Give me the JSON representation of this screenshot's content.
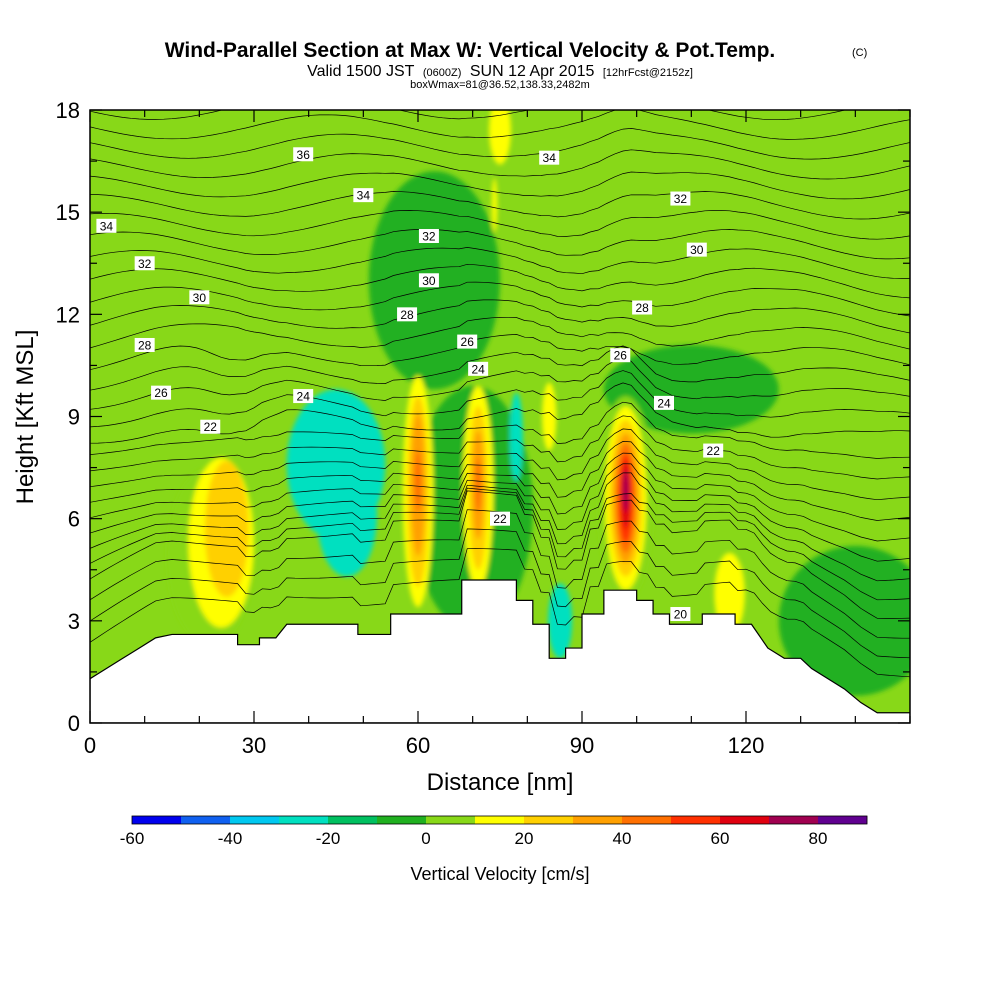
{
  "chart_data": {
    "type": "heatmap",
    "title": "Wind-Parallel Section at Max W: Vertical Velocity & Pot.Temp.",
    "copyright": "(C)",
    "subtitle_parts": [
      "Valid 1500 JST",
      "(0600Z)",
      "SUN 12 Apr 2015",
      "[12hrFcst@2152z]"
    ],
    "subtitle2": "boxWmax=81@36.52,138.33,2482m",
    "xlabel": "Distance [nm]",
    "ylabel": "Height [Kft MSL]",
    "xlim": [
      0,
      150
    ],
    "ylim": [
      0,
      18
    ],
    "x_ticks": [
      0,
      30,
      60,
      90,
      120
    ],
    "y_ticks": [
      0,
      3,
      6,
      9,
      12,
      15,
      18
    ],
    "colorbar": {
      "label": "Vertical Velocity [cm/s]",
      "levels": [
        -60,
        -50,
        -40,
        -30,
        -20,
        -10,
        0,
        10,
        20,
        30,
        40,
        50,
        60,
        70,
        80,
        90
      ],
      "tick_labels": [
        -60,
        -40,
        -20,
        0,
        20,
        40,
        60,
        80
      ],
      "colors": [
        "#0000ee",
        "#1060f0",
        "#00c8f0",
        "#00e0c0",
        "#00c060",
        "#20b020",
        "#88d818",
        "#ffff00",
        "#ffd000",
        "#ffa000",
        "#ff7000",
        "#ff3000",
        "#e00010",
        "#a00050",
        "#600090"
      ]
    },
    "terrain_kft": [
      [
        0,
        1.3
      ],
      [
        3,
        1.6
      ],
      [
        6,
        1.9
      ],
      [
        9,
        2.2
      ],
      [
        12,
        2.5
      ],
      [
        15,
        2.6
      ],
      [
        27,
        2.6
      ],
      [
        27,
        2.3
      ],
      [
        31,
        2.3
      ],
      [
        31,
        2.5
      ],
      [
        34,
        2.5
      ],
      [
        36,
        2.9
      ],
      [
        49,
        2.9
      ],
      [
        49,
        2.6
      ],
      [
        55,
        2.6
      ],
      [
        55,
        3.2
      ],
      [
        68,
        3.2
      ],
      [
        68,
        4.2
      ],
      [
        78,
        4.2
      ],
      [
        78,
        3.6
      ],
      [
        81,
        3.6
      ],
      [
        81,
        2.9
      ],
      [
        84,
        2.9
      ],
      [
        84,
        1.9
      ],
      [
        87,
        1.9
      ],
      [
        87,
        2.2
      ],
      [
        90,
        2.2
      ],
      [
        90,
        3.2
      ],
      [
        94,
        3.2
      ],
      [
        94,
        3.9
      ],
      [
        100,
        3.9
      ],
      [
        100,
        3.6
      ],
      [
        103,
        3.6
      ],
      [
        103,
        3.2
      ],
      [
        106,
        3.2
      ],
      [
        106,
        2.9
      ],
      [
        112,
        2.9
      ],
      [
        112,
        3.2
      ],
      [
        118,
        3.2
      ],
      [
        118,
        2.9
      ],
      [
        121,
        2.9
      ],
      [
        124,
        2.2
      ],
      [
        127,
        1.9
      ],
      [
        130,
        1.9
      ],
      [
        132,
        1.6
      ],
      [
        135,
        1.3
      ],
      [
        138,
        1.0
      ],
      [
        141,
        0.6
      ],
      [
        144,
        0.3
      ],
      [
        150,
        0.3
      ]
    ],
    "vertical_velocity_features": [
      {
        "x": 45,
        "y": 7.6,
        "rx": 9,
        "ry": 2.2,
        "value": -25
      },
      {
        "x": 70,
        "y": 6.3,
        "rx": 11,
        "ry": 3.6,
        "value": -5
      },
      {
        "x": 140,
        "y": 3.0,
        "rx": 14,
        "ry": 2.2,
        "value": -5
      },
      {
        "x": 110,
        "y": 9.8,
        "rx": 16,
        "ry": 1.3,
        "value": -5
      },
      {
        "x": 47,
        "y": 6.1,
        "rx": 5.5,
        "ry": 1.8,
        "value": -25
      },
      {
        "x": 63,
        "y": 13.0,
        "rx": 12,
        "ry": 3.2,
        "value": -5
      },
      {
        "x": 78,
        "y": 8.4,
        "rx": 1.2,
        "ry": 1.3,
        "value": -25
      },
      {
        "x": 86,
        "y": 3.0,
        "rx": 2.2,
        "ry": 1.1,
        "value": -25
      },
      {
        "x": 22,
        "y": 4.9,
        "rx": 8,
        "ry": 2.6,
        "value": 5
      },
      {
        "x": 24,
        "y": 5.3,
        "rx": 6,
        "ry": 2.5,
        "value": 15
      },
      {
        "x": 25,
        "y": 5.7,
        "rx": 4,
        "ry": 2.0,
        "value": 25
      },
      {
        "x": 60,
        "y": 6.8,
        "rx": 2.8,
        "ry": 3.4,
        "value": 15
      },
      {
        "x": 60,
        "y": 6.8,
        "rx": 2.0,
        "ry": 2.8,
        "value": 25
      },
      {
        "x": 60,
        "y": 7.0,
        "rx": 1.3,
        "ry": 2.1,
        "value": 35
      },
      {
        "x": 60,
        "y": 7.1,
        "rx": 0.6,
        "ry": 0.9,
        "value": 45
      },
      {
        "x": 71,
        "y": 6.9,
        "rx": 2.8,
        "ry": 3.0,
        "value": 15
      },
      {
        "x": 71,
        "y": 6.9,
        "rx": 1.8,
        "ry": 2.4,
        "value": 25
      },
      {
        "x": 71,
        "y": 7.0,
        "rx": 1.1,
        "ry": 1.6,
        "value": 35
      },
      {
        "x": 71,
        "y": 7.0,
        "rx": 0.5,
        "ry": 0.8,
        "value": 45
      },
      {
        "x": 98,
        "y": 6.6,
        "rx": 5.2,
        "ry": 3.0,
        "value": 5
      },
      {
        "x": 98,
        "y": 6.6,
        "rx": 3.8,
        "ry": 2.7,
        "value": 15
      },
      {
        "x": 98,
        "y": 6.6,
        "rx": 3.0,
        "ry": 2.3,
        "value": 25
      },
      {
        "x": 98,
        "y": 6.6,
        "rx": 2.3,
        "ry": 1.9,
        "value": 35
      },
      {
        "x": 98,
        "y": 6.6,
        "rx": 1.8,
        "ry": 1.6,
        "value": 45
      },
      {
        "x": 98,
        "y": 6.6,
        "rx": 1.3,
        "ry": 1.3,
        "value": 55
      },
      {
        "x": 98,
        "y": 6.7,
        "rx": 0.9,
        "ry": 1.0,
        "value": 65
      },
      {
        "x": 98,
        "y": 6.8,
        "rx": 0.5,
        "ry": 0.6,
        "value": 75
      },
      {
        "x": 117,
        "y": 3.8,
        "rx": 2.8,
        "ry": 1.2,
        "value": 15
      },
      {
        "x": 84,
        "y": 9.0,
        "rx": 1.3,
        "ry": 1.0,
        "value": 15
      },
      {
        "x": 75,
        "y": 17.4,
        "rx": 2.0,
        "ry": 1.0,
        "value": 15
      },
      {
        "x": 74,
        "y": 15.2,
        "rx": 0.5,
        "ry": 0.8,
        "value": 15
      }
    ],
    "theta_contour_labels": [
      {
        "text": "36",
        "x": 39,
        "y": 16.7
      },
      {
        "text": "34",
        "x": 50,
        "y": 15.5
      },
      {
        "text": "34",
        "x": 84,
        "y": 16.6
      },
      {
        "text": "34",
        "x": 3,
        "y": 14.6
      },
      {
        "text": "32",
        "x": 10,
        "y": 13.5
      },
      {
        "text": "32",
        "x": 62,
        "y": 14.3
      },
      {
        "text": "32",
        "x": 108,
        "y": 15.4
      },
      {
        "text": "30",
        "x": 20,
        "y": 12.5
      },
      {
        "text": "30",
        "x": 62,
        "y": 13.0
      },
      {
        "text": "30",
        "x": 111,
        "y": 13.9
      },
      {
        "text": "28",
        "x": 10,
        "y": 11.1
      },
      {
        "text": "28",
        "x": 58,
        "y": 12.0
      },
      {
        "text": "28",
        "x": 101,
        "y": 12.2
      },
      {
        "text": "26",
        "x": 13,
        "y": 9.7
      },
      {
        "text": "26",
        "x": 69,
        "y": 11.2
      },
      {
        "text": "26",
        "x": 97,
        "y": 10.8
      },
      {
        "text": "24",
        "x": 39,
        "y": 9.6
      },
      {
        "text": "24",
        "x": 71,
        "y": 10.4
      },
      {
        "text": "24",
        "x": 105,
        "y": 9.4
      },
      {
        "text": "22",
        "x": 22,
        "y": 8.7
      },
      {
        "text": "22",
        "x": 75,
        "y": 6.0
      },
      {
        "text": "22",
        "x": 114,
        "y": 8.0
      },
      {
        "text": "20",
        "x": 108,
        "y": 3.2
      }
    ]
  }
}
